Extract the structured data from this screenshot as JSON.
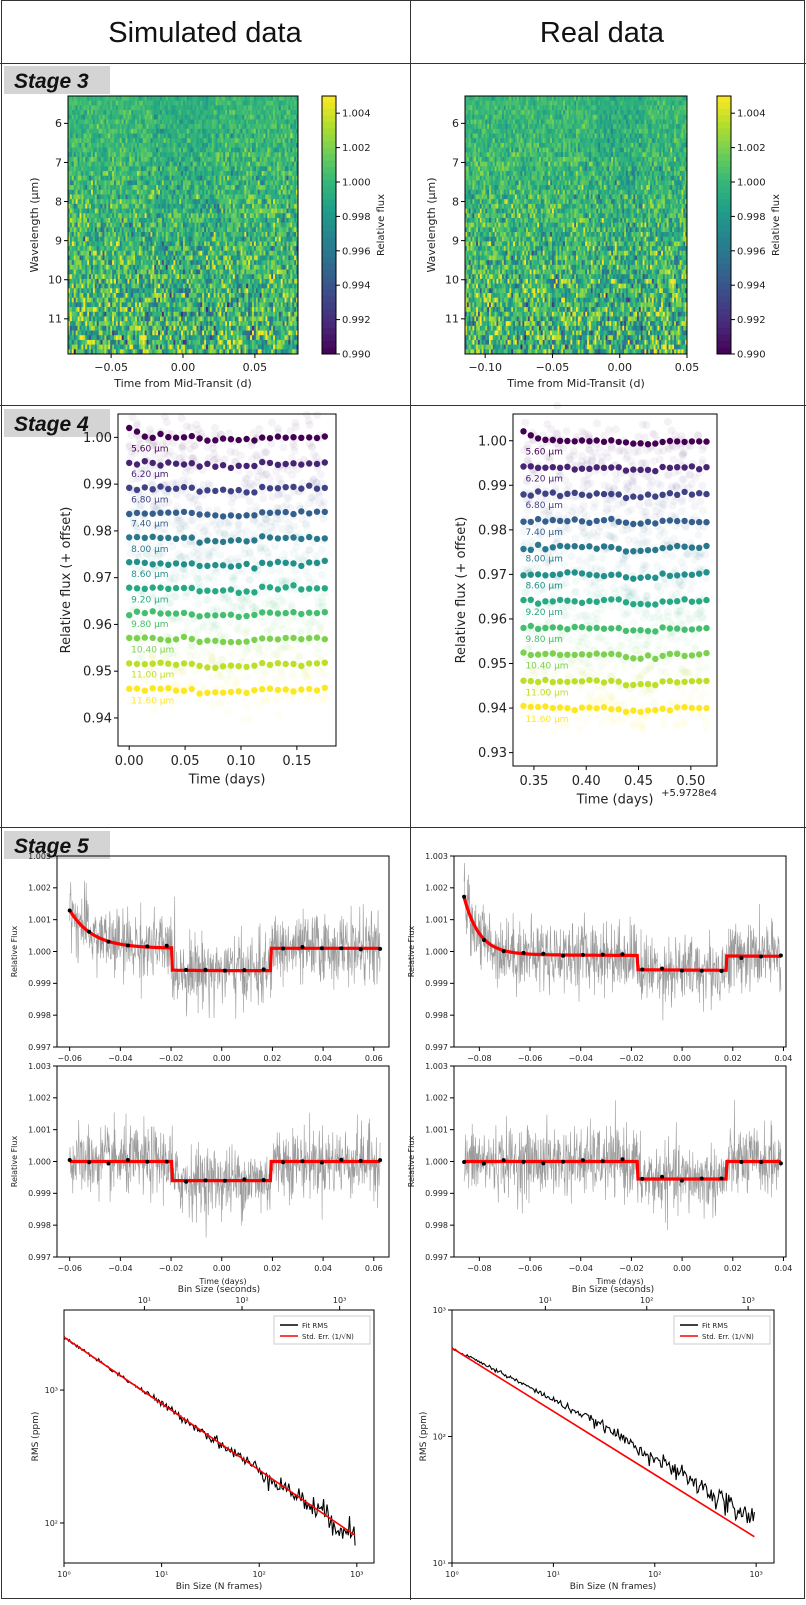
{
  "headers": {
    "left": "Simulated data",
    "right": "Real data"
  },
  "stages": {
    "s3": "Stage 3",
    "s4": "Stage 4",
    "s5": "Stage 5"
  },
  "colors": {
    "viridis": [
      "#440154",
      "#482878",
      "#3e4989",
      "#31688e",
      "#26828e",
      "#1f9e89",
      "#35b779",
      "#6ece58",
      "#b5de2b",
      "#fde725"
    ],
    "model": "#ff0000",
    "rms": "#000000",
    "binned": "#000000",
    "scatter": "#808080"
  },
  "chart_data": [
    {
      "id": "stage3-sim",
      "type": "heatmap",
      "xlabel": "Time from Mid-Transit (d)",
      "ylabel": "Wavelength (μm)",
      "xlim": [
        -0.08,
        0.08
      ],
      "ylim": [
        5.3,
        11.9
      ],
      "xticks": [
        -0.05,
        0.0,
        0.05
      ],
      "xticklabels": [
        "−0.05",
        "0.00",
        "0.05"
      ],
      "yticks": [
        6,
        7,
        8,
        9,
        10,
        11
      ],
      "yticklabels": [
        "6",
        "7",
        "8",
        "9",
        "10",
        "11"
      ],
      "colorbar": {
        "label": "Relative flux",
        "range": [
          0.99,
          1.005
        ],
        "ticks": [
          0.99,
          0.992,
          0.994,
          0.996,
          0.998,
          1.0,
          1.002,
          1.004
        ],
        "ticklabels": [
          "0.990",
          "0.992",
          "0.994",
          "0.996",
          "0.998",
          "1.000",
          "1.002",
          "1.004"
        ]
      },
      "transit": [
        -0.02,
        0.02
      ],
      "depth": 0.0006
    },
    {
      "id": "stage3-real",
      "type": "heatmap",
      "xlabel": "Time from Mid-Transit (d)",
      "ylabel": "Wavelength (μm)",
      "xlim": [
        -0.115,
        0.05
      ],
      "ylim": [
        5.3,
        11.9
      ],
      "xticks": [
        -0.1,
        -0.05,
        0.0,
        0.05
      ],
      "xticklabels": [
        "−0.10",
        "−0.05",
        "0.00",
        "0.05"
      ],
      "yticks": [
        6,
        7,
        8,
        9,
        10,
        11
      ],
      "yticklabels": [
        "6",
        "7",
        "8",
        "9",
        "10",
        "11"
      ],
      "colorbar": {
        "label": "Relative flux",
        "range": [
          0.99,
          1.005
        ],
        "ticks": [
          0.99,
          0.992,
          0.994,
          0.996,
          0.998,
          1.0,
          1.002,
          1.004
        ],
        "ticklabels": [
          "0.990",
          "0.992",
          "0.994",
          "0.996",
          "0.998",
          "1.000",
          "1.002",
          "1.004"
        ]
      },
      "transit": [
        -0.018,
        0.018
      ],
      "depth": 0.0006
    },
    {
      "id": "stage4-sim",
      "type": "scatter",
      "xlabel": "Time (days)",
      "ylabel": "Relative flux (+ offset)",
      "xlim": [
        -0.01,
        0.185
      ],
      "ylim": [
        0.934,
        1.005
      ],
      "xticks": [
        0.0,
        0.05,
        0.1,
        0.15
      ],
      "xticklabels": [
        "0.00",
        "0.05",
        "0.10",
        "0.15"
      ],
      "yticks": [
        0.94,
        0.95,
        0.96,
        0.97,
        0.98,
        0.99,
        1.0
      ],
      "yticklabels": [
        "0.94",
        "0.95",
        "0.96",
        "0.97",
        "0.98",
        "0.99",
        "1.00"
      ],
      "x_range": [
        0.0,
        0.175
      ],
      "transit": [
        0.058,
        0.116
      ],
      "offset_note": "",
      "series": [
        {
          "name": "5.60 μm",
          "base": 1.0
        },
        {
          "name": "6.20 μm",
          "base": 0.9945
        },
        {
          "name": "6.80 μm",
          "base": 0.9891
        },
        {
          "name": "7.40 μm",
          "base": 0.9839
        },
        {
          "name": "8.00 μm",
          "base": 0.9785
        },
        {
          "name": "8.60 μm",
          "base": 0.9731
        },
        {
          "name": "9.20 μm",
          "base": 0.9677
        },
        {
          "name": "9.80 μm",
          "base": 0.9624
        },
        {
          "name": "10.40 μm",
          "base": 0.957
        },
        {
          "name": "11.00 μm",
          "base": 0.9516
        },
        {
          "name": "11.60 μm",
          "base": 0.9461
        }
      ]
    },
    {
      "id": "stage4-real",
      "type": "scatter",
      "xlabel": "Time (days)",
      "ylabel": "Relative flux (+ offset)",
      "xlim": [
        0.33,
        0.525
      ],
      "ylim": [
        0.927,
        1.006
      ],
      "xticks": [
        0.35,
        0.4,
        0.45,
        0.5
      ],
      "xticklabels": [
        "0.35",
        "0.40",
        "0.45",
        "0.50"
      ],
      "yticks": [
        0.93,
        0.94,
        0.95,
        0.96,
        0.97,
        0.98,
        0.99,
        1.0
      ],
      "yticklabels": [
        "0.93",
        "0.94",
        "0.95",
        "0.96",
        "0.97",
        "0.98",
        "0.99",
        "1.00"
      ],
      "x_range": [
        0.34,
        0.515
      ],
      "transit": [
        0.433,
        0.469
      ],
      "offset_note": "+5.9728e4",
      "series": [
        {
          "name": "5.60 μm",
          "base": 1.0
        },
        {
          "name": "6.20 μm",
          "base": 0.994
        },
        {
          "name": "6.80 μm",
          "base": 0.988
        },
        {
          "name": "7.40 μm",
          "base": 0.982
        },
        {
          "name": "8.00 μm",
          "base": 0.976
        },
        {
          "name": "8.60 μm",
          "base": 0.97
        },
        {
          "name": "9.20 μm",
          "base": 0.964
        },
        {
          "name": "9.80 μm",
          "base": 0.958
        },
        {
          "name": "10.40 μm",
          "base": 0.952
        },
        {
          "name": "11.00 μm",
          "base": 0.946
        },
        {
          "name": "11.60 μm",
          "base": 0.94
        }
      ]
    },
    {
      "id": "stage5-sim-fit",
      "type": "scatter",
      "xlabel": "",
      "ylabel": "Relative Flux",
      "xlim": [
        -0.065,
        0.066
      ],
      "ylim": [
        0.997,
        1.003
      ],
      "xticks": [
        -0.06,
        -0.04,
        -0.02,
        0.0,
        0.02,
        0.04,
        0.06
      ],
      "xticklabels": [
        "−0.06",
        "−0.04",
        "−0.02",
        "0.00",
        "0.02",
        "0.04",
        "0.06"
      ],
      "yticks": [
        0.997,
        0.998,
        0.999,
        1.0,
        1.001,
        1.002,
        1.003
      ],
      "yticklabels": [
        "0.997",
        "0.998",
        "0.999",
        "1.000",
        "1.001",
        "1.002",
        "1.003"
      ],
      "x_range": [
        -0.06,
        0.0625
      ],
      "transit": [
        -0.0195,
        0.0195
      ],
      "depth": 0.0006,
      "ramp_amp": 0.0012,
      "ramp_tau": 0.009,
      "pre_level": 1.0001,
      "post_level": 1.0001,
      "noise": 0.0009
    },
    {
      "id": "stage5-real-fit",
      "type": "scatter",
      "xlabel": "",
      "ylabel": "Relative Flux",
      "xlim": [
        -0.09,
        0.041
      ],
      "ylim": [
        0.997,
        1.003
      ],
      "xticks": [
        -0.08,
        -0.06,
        -0.04,
        -0.02,
        0.0,
        0.02,
        0.04
      ],
      "xticklabels": [
        "−0.08",
        "−0.06",
        "−0.04",
        "−0.02",
        "0.00",
        "0.02",
        "0.04"
      ],
      "yticks": [
        0.997,
        0.998,
        0.999,
        1.0,
        1.001,
        1.002,
        1.003
      ],
      "yticklabels": [
        "0.997",
        "0.998",
        "0.999",
        "1.000",
        "1.001",
        "1.002",
        "1.003"
      ],
      "x_range": [
        -0.086,
        0.039
      ],
      "transit": [
        -0.0175,
        0.0175
      ],
      "depth": 0.0006,
      "ramp_amp": 0.0018,
      "ramp_tau": 0.006,
      "slope": -0.0088,
      "pre_level": 0.99985,
      "post_level": 0.99985,
      "noise": 0.0009
    },
    {
      "id": "stage5-sim-detrended",
      "type": "scatter",
      "xlabel": "Time (days)",
      "ylabel": "Relative Flux",
      "xlim": [
        -0.065,
        0.066
      ],
      "ylim": [
        0.997,
        1.003
      ],
      "xticks": [
        -0.06,
        -0.04,
        -0.02,
        0.0,
        0.02,
        0.04,
        0.06
      ],
      "xticklabels": [
        "−0.06",
        "−0.04",
        "−0.02",
        "0.00",
        "0.02",
        "0.04",
        "0.06"
      ],
      "yticks": [
        0.997,
        0.998,
        0.999,
        1.0,
        1.001,
        1.002,
        1.003
      ],
      "yticklabels": [
        "0.997",
        "0.998",
        "0.999",
        "1.000",
        "1.001",
        "1.002",
        "1.003"
      ],
      "x_range": [
        -0.06,
        0.0625
      ],
      "transit": [
        -0.0195,
        0.0195
      ],
      "depth": 0.0006,
      "ramp_amp": 0,
      "ramp_tau": 0.01,
      "pre_level": 1.0,
      "post_level": 1.0,
      "noise": 0.0009
    },
    {
      "id": "stage5-real-detrended",
      "type": "scatter",
      "xlabel": "Time (days)",
      "ylabel": "Relative Flux",
      "xlim": [
        -0.09,
        0.041
      ],
      "ylim": [
        0.997,
        1.003
      ],
      "xticks": [
        -0.08,
        -0.06,
        -0.04,
        -0.02,
        0.0,
        0.02,
        0.04
      ],
      "xticklabels": [
        "−0.08",
        "−0.06",
        "−0.04",
        "−0.02",
        "0.00",
        "0.02",
        "0.04"
      ],
      "yticks": [
        0.997,
        0.998,
        0.999,
        1.0,
        1.001,
        1.002,
        1.003
      ],
      "yticklabels": [
        "0.997",
        "0.998",
        "0.999",
        "1.000",
        "1.001",
        "1.002",
        "1.003"
      ],
      "x_range": [
        -0.086,
        0.039
      ],
      "transit": [
        -0.0175,
        0.0175
      ],
      "depth": 0.00055,
      "ramp_amp": 0,
      "ramp_tau": 0.01,
      "pre_level": 1.0,
      "post_level": 1.0,
      "noise": 0.0009
    },
    {
      "id": "stage5-sim-rms",
      "type": "line",
      "xlabel": "Bin Size (N frames)",
      "x2label": "Bin Size (seconds)",
      "ylabel": "RMS (ppm)",
      "log": true,
      "xlim": [
        1,
        1500
      ],
      "ylim": [
        50,
        4000
      ],
      "xticks": [
        1,
        10,
        100,
        1000
      ],
      "xticklabels": [
        "10⁰",
        "10¹",
        "10²",
        "10³"
      ],
      "yticks": [
        100,
        1000
      ],
      "yticklabels": [
        "10²",
        "10³"
      ],
      "x2ticks": [
        10,
        100,
        1000
      ],
      "x2ticklabels": [
        "10¹",
        "10²",
        "10³"
      ],
      "x2_per_frame": 1.5,
      "legend": [
        "Fit RMS",
        "Std. Err. (1/√N)"
      ],
      "legend_loc": "upper right",
      "rms0": 2500,
      "n_max": 960,
      "excess": 0
    },
    {
      "id": "stage5-real-rms",
      "type": "line",
      "xlabel": "Bin Size (N frames)",
      "x2label": "Bin Size (seconds)",
      "ylabel": "RMS (ppm)",
      "log": true,
      "xlim": [
        1,
        1500
      ],
      "ylim": [
        10,
        1000
      ],
      "xticks": [
        1,
        10,
        100,
        1000
      ],
      "xticklabels": [
        "10⁰",
        "10¹",
        "10²",
        "10³"
      ],
      "yticks": [
        10,
        100,
        1000
      ],
      "yticklabels": [
        "10¹",
        "10²",
        "10³"
      ],
      "x2ticks": [
        10,
        100,
        1000
      ],
      "x2ticklabels": [
        "10¹",
        "10²",
        "10³"
      ],
      "x2_per_frame": 1.2,
      "legend": [
        "Fit RMS",
        "Std. Err. (1/√N)"
      ],
      "legend_loc": "upper right",
      "rms0": 500,
      "n_max": 960,
      "excess": 0.35
    }
  ]
}
